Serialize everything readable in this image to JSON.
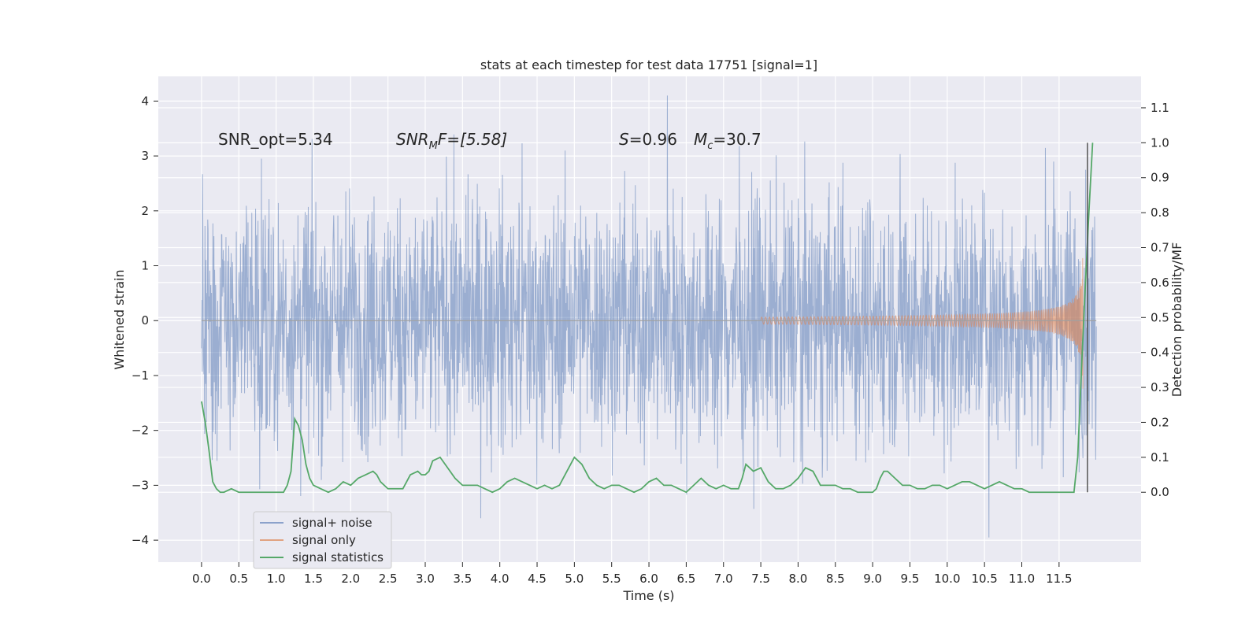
{
  "chart_data": {
    "type": "line",
    "title": "stats at each timestep for test data 17751 [signal=1]",
    "xlabel": "Time (s)",
    "ylabel": "Whitened strain",
    "ylabel_right": "Detection probability/MF",
    "xlim": [
      -0.58,
      12.6
    ],
    "ylim": [
      -4.4,
      4.45
    ],
    "ylim_right": [
      -0.2,
      1.19
    ],
    "x_ticks": [
      "0.0",
      "0.5",
      "1.0",
      "1.5",
      "2.0",
      "2.5",
      "3.0",
      "3.5",
      "4.0",
      "4.5",
      "5.0",
      "5.5",
      "6.0",
      "6.5",
      "7.0",
      "7.5",
      "8.0",
      "8.5",
      "9.0",
      "9.5",
      "10.0",
      "10.5",
      "11.0",
      "11.5"
    ],
    "y_ticks": [
      "−4",
      "−3",
      "−2",
      "−1",
      "0",
      "1",
      "2",
      "3",
      "4"
    ],
    "y_right_ticks": [
      "0.0",
      "0.1",
      "0.2",
      "0.3",
      "0.4",
      "0.5",
      "0.6",
      "0.7",
      "0.8",
      "0.9",
      "1.0",
      "1.1"
    ],
    "grid": true,
    "legend_position": "lower-left",
    "annotations": {
      "snr_opt": "SNR_opt=5.34",
      "snr_mf": "SNR",
      "snr_mf_sub": "M",
      "snr_mf_rest": "F=[5.58]",
      "s_label": "S",
      "s_value": "=0.96",
      "mc_label": "M",
      "mc_sub": "c",
      "mc_value": "=30.7"
    },
    "vline_x": 11.88,
    "series": [
      {
        "name": "signal+ noise",
        "color": "#4c72b0",
        "axis": "left",
        "envelope": {
          "x_start": 0.0,
          "x_end": 12.0,
          "typical_abs": 2.1,
          "peak_max": 4.1,
          "peak_min": -3.95
        }
      },
      {
        "name": "signal only",
        "color": "#dd8452",
        "axis": "left",
        "chirp": {
          "x_start": 7.5,
          "x_end": 11.82,
          "peak_amplitude": 1.25
        }
      },
      {
        "name": "signal statistics",
        "color": "#55a868",
        "axis": "right",
        "x": [
          0.0,
          0.05,
          0.1,
          0.15,
          0.2,
          0.25,
          0.3,
          0.4,
          0.5,
          0.6,
          0.7,
          0.8,
          0.9,
          1.0,
          1.1,
          1.15,
          1.2,
          1.25,
          1.3,
          1.35,
          1.4,
          1.45,
          1.5,
          1.6,
          1.7,
          1.8,
          1.85,
          1.9,
          2.0,
          2.05,
          2.1,
          2.2,
          2.3,
          2.35,
          2.4,
          2.5,
          2.6,
          2.7,
          2.75,
          2.8,
          2.9,
          2.95,
          3.0,
          3.05,
          3.1,
          3.2,
          3.3,
          3.4,
          3.5,
          3.6,
          3.7,
          3.8,
          3.9,
          4.0,
          4.1,
          4.2,
          4.3,
          4.4,
          4.5,
          4.6,
          4.7,
          4.8,
          4.9,
          5.0,
          5.1,
          5.2,
          5.3,
          5.4,
          5.5,
          5.6,
          5.7,
          5.8,
          5.9,
          6.0,
          6.1,
          6.2,
          6.3,
          6.4,
          6.5,
          6.6,
          6.7,
          6.8,
          6.9,
          7.0,
          7.1,
          7.2,
          7.25,
          7.3,
          7.4,
          7.5,
          7.6,
          7.7,
          7.8,
          7.9,
          8.0,
          8.1,
          8.2,
          8.3,
          8.4,
          8.5,
          8.6,
          8.7,
          8.8,
          8.9,
          9.0,
          9.05,
          9.1,
          9.15,
          9.2,
          9.3,
          9.4,
          9.5,
          9.6,
          9.7,
          9.8,
          9.9,
          10.0,
          10.1,
          10.2,
          10.3,
          10.4,
          10.5,
          10.6,
          10.7,
          10.8,
          10.9,
          11.0,
          11.1,
          11.2,
          11.3,
          11.4,
          11.5,
          11.6,
          11.65,
          11.7,
          11.75,
          11.8,
          11.85,
          11.9,
          11.95
        ],
        "values": [
          0.26,
          0.2,
          0.12,
          0.03,
          0.01,
          0.0,
          0.0,
          0.01,
          0.0,
          0.0,
          0.0,
          0.0,
          0.0,
          0.0,
          0.0,
          0.02,
          0.06,
          0.21,
          0.19,
          0.15,
          0.08,
          0.04,
          0.02,
          0.01,
          0.0,
          0.01,
          0.02,
          0.03,
          0.02,
          0.03,
          0.04,
          0.05,
          0.06,
          0.05,
          0.03,
          0.01,
          0.01,
          0.01,
          0.03,
          0.05,
          0.06,
          0.05,
          0.05,
          0.06,
          0.09,
          0.1,
          0.07,
          0.04,
          0.02,
          0.02,
          0.02,
          0.01,
          0.0,
          0.01,
          0.03,
          0.04,
          0.03,
          0.02,
          0.01,
          0.02,
          0.01,
          0.02,
          0.06,
          0.1,
          0.08,
          0.04,
          0.02,
          0.01,
          0.02,
          0.02,
          0.01,
          0.0,
          0.01,
          0.03,
          0.04,
          0.02,
          0.02,
          0.01,
          0.0,
          0.02,
          0.04,
          0.02,
          0.01,
          0.02,
          0.01,
          0.01,
          0.04,
          0.08,
          0.06,
          0.07,
          0.03,
          0.01,
          0.01,
          0.02,
          0.04,
          0.07,
          0.06,
          0.02,
          0.02,
          0.02,
          0.01,
          0.01,
          0.0,
          0.0,
          0.0,
          0.01,
          0.04,
          0.06,
          0.06,
          0.04,
          0.02,
          0.02,
          0.01,
          0.01,
          0.02,
          0.02,
          0.01,
          0.02,
          0.03,
          0.03,
          0.02,
          0.01,
          0.02,
          0.03,
          0.02,
          0.01,
          0.01,
          0.0,
          0.0,
          0.0,
          0.0,
          0.0,
          0.0,
          0.0,
          0.0,
          0.1,
          0.35,
          0.58,
          0.8,
          1.0
        ]
      }
    ]
  }
}
